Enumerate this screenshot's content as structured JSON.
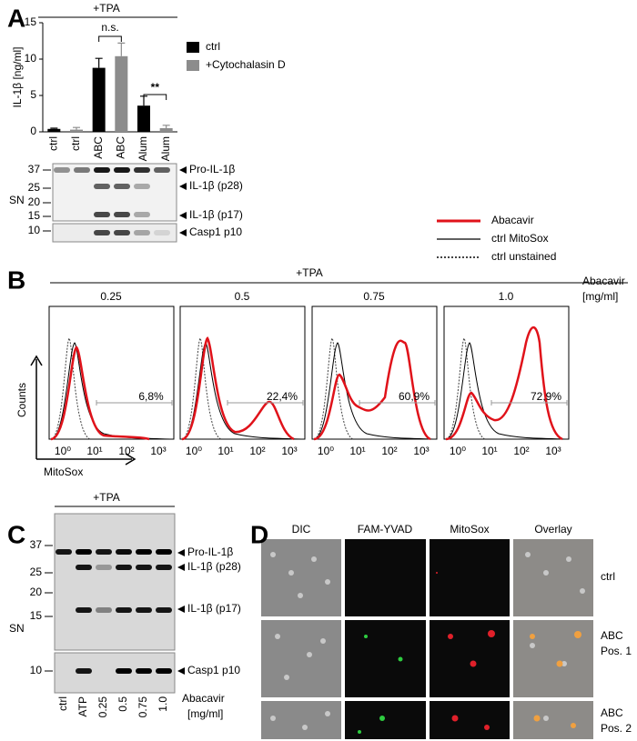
{
  "chart_data": {
    "type": "bar",
    "y_label": "IL-1β [ng/ml]",
    "categories": [
      "ctrl",
      "ctrl",
      "ABC",
      "ABC",
      "Alum",
      "Alum"
    ],
    "series": [
      {
        "name": "ctrl",
        "color": "#000000",
        "values": [
          0.4,
          null,
          8.8,
          null,
          3.6,
          null
        ],
        "errors": [
          0.1,
          null,
          1.3,
          null,
          1.3,
          null
        ]
      },
      {
        "name": "+Cytochalasin D",
        "color": "#8c8c8c",
        "values": [
          null,
          0.3,
          null,
          10.4,
          null,
          0.5
        ],
        "errors": [
          null,
          0.3,
          null,
          1.8,
          null,
          0.4
        ]
      }
    ],
    "ylim": [
      0,
      15
    ],
    "yticks": [
      0,
      5,
      10,
      15
    ],
    "annotations": [
      "+TPA",
      "n.s.",
      "**"
    ]
  },
  "panel_labels": [
    "A",
    "B",
    "C",
    "D"
  ],
  "blot_a": {
    "markers": [
      37,
      25,
      20,
      15,
      10
    ],
    "side_label": "SN",
    "bands": [
      "Pro-IL-1β",
      "IL-1β (p28)",
      "IL-1β (p17)",
      "Casp1 p10"
    ]
  },
  "flow": {
    "title": "+TPA",
    "conditions": [
      "0.25",
      "0.5",
      "0.75",
      "1.0"
    ],
    "unit_label": [
      "Abacavir",
      "[mg/ml]"
    ],
    "percentages": [
      "6,8%",
      "22,4%",
      "60,9%",
      "72,9%"
    ],
    "xtick_labels": [
      "10⁰",
      "10¹",
      "10²",
      "10³"
    ],
    "y_label": "Counts",
    "x_label": "MitoSox",
    "legend": [
      "Abacavir",
      "ctrl MitoSox",
      "ctrl unstained"
    ]
  },
  "blot_c": {
    "title": "+TPA",
    "markers": [
      37,
      25,
      20,
      15,
      10
    ],
    "side_label": "SN",
    "bands": [
      "Pro-IL-1β",
      "IL-1β (p28)",
      "IL-1β (p17)",
      "Casp1 p10"
    ],
    "lanes": [
      "ctrl",
      "ATP",
      "0.25",
      "0.5",
      "0.75",
      "1.0"
    ],
    "lane_title": "Abacavir",
    "lane_unit": "[mg/ml]"
  },
  "microscopy": {
    "columns": [
      "DIC",
      "FAM-YVAD",
      "MitoSox",
      "Overlay"
    ],
    "rows": [
      [
        "ctrl"
      ],
      [
        "ABC",
        "Pos. 1"
      ],
      [
        "ABC",
        "Pos. 2"
      ]
    ]
  }
}
